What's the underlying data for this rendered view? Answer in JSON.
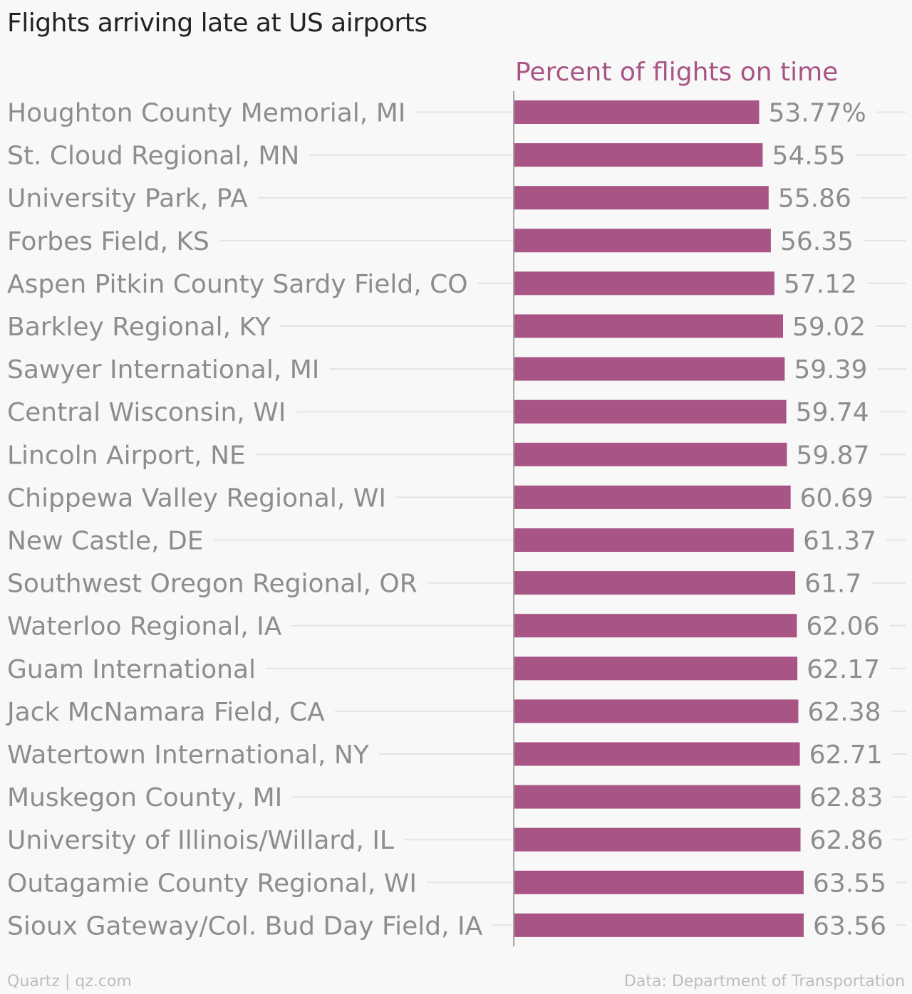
{
  "title": "Flights arriving late at US airports",
  "footer": {
    "source_left": "Quartz | qz.com",
    "source_right": "Data: Department of Transportation"
  },
  "colors": {
    "bar": "#a85585",
    "header": "#a85585",
    "category_text": "#8d8d8d",
    "value_text": "#8d8d8d",
    "gridline": "#e4e4e4",
    "axis_line": "#8a8a8a",
    "background": "#f8f8f8"
  },
  "chart_data": {
    "type": "bar",
    "orientation": "horizontal",
    "column_header": "Percent of flights on time",
    "value_unit_suffix": "%",
    "categories": [
      "Houghton County Memorial, MI",
      "St. Cloud Regional, MN",
      "University Park, PA",
      "Forbes Field, KS",
      "Aspen Pitkin County Sardy Field, CO",
      "Barkley Regional, KY",
      "Sawyer International, MI",
      "Central Wisconsin, WI",
      "Lincoln Airport, NE",
      "Chippewa Valley Regional, WI",
      "New Castle, DE",
      "Southwest Oregon Regional, OR",
      "Waterloo Regional, IA",
      "Guam International",
      "Jack McNamara Field, CA",
      "Watertown International, NY",
      "Muskegon County, MI",
      "University of Illinois/Willard, IL",
      "Outagamie County Regional, WI",
      "Sioux Gateway/Col. Bud Day Field, IA"
    ],
    "values": [
      53.77,
      54.55,
      55.86,
      56.35,
      57.12,
      59.02,
      59.39,
      59.74,
      59.87,
      60.69,
      61.37,
      61.7,
      62.06,
      62.17,
      62.38,
      62.71,
      62.83,
      62.86,
      63.55,
      63.56
    ],
    "value_labels": [
      "53.77%",
      "54.55",
      "55.86",
      "56.35",
      "57.12",
      "59.02",
      "59.39",
      "59.74",
      "59.87",
      "60.69",
      "61.37",
      "61.7",
      "62.06",
      "62.17",
      "62.38",
      "62.71",
      "62.83",
      "62.86",
      "63.55",
      "63.56"
    ],
    "xlim": [
      0,
      63.56
    ],
    "grid": true,
    "legend": "none"
  }
}
